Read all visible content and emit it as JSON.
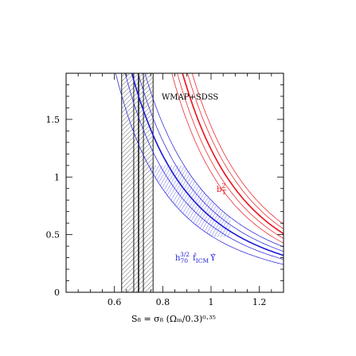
{
  "chart_data": {
    "type": "line",
    "title": "",
    "xlabel": "S₈ = σ₈ (Ωₘ/0.3)⁰·³⁵",
    "ylabel": "",
    "xlim": [
      0.4,
      1.3
    ],
    "ylim": [
      0,
      1.9
    ],
    "x_ticks": [
      0.6,
      0.8,
      1,
      1.2
    ],
    "x_tick_labels": [
      "0.6",
      "0.8",
      "1",
      "1.2"
    ],
    "y_ticks": [
      0,
      0.5,
      1,
      1.5
    ],
    "y_tick_labels": [
      "0",
      "0.5",
      "1",
      "1.5"
    ],
    "grid": false,
    "colors": {
      "red": "#e8121a",
      "blue": "#1a1ad8",
      "black": "#000000"
    },
    "vertical_band": {
      "label": "WMAP+SDSS",
      "center": 0.7,
      "inner": [
        0.68,
        0.72
      ],
      "outer": [
        0.63,
        0.76
      ],
      "hatch": "diagonal"
    },
    "series": [
      {
        "name": "b_T²",
        "color": "red",
        "central": {
          "coef": 1.24,
          "power": 3.4
        },
        "band_inner": [
          {
            "coef": 1.14,
            "power": 3.4
          },
          {
            "coef": 1.34,
            "power": 3.4
          }
        ],
        "band_outer": [
          {
            "coef": 1.04,
            "power": 3.4
          },
          {
            "coef": 1.44,
            "power": 3.4
          }
        ],
        "hatched_region": {
          "x_range": [
            0.74,
            0.96
          ],
          "y_range": [
            0.85,
            1.1
          ]
        }
      },
      {
        "name": "h₇₀^{3/2} f̂_ICM Υ",
        "color": "blue",
        "central": {
          "coef": 0.65,
          "power": 2.7
        },
        "band_inner": [
          {
            "coef": 0.58,
            "power": 2.7
          },
          {
            "coef": 0.72,
            "power": 2.7
          }
        ],
        "band_outer": [
          {
            "coef": 0.49,
            "power": 2.7
          },
          {
            "coef": 0.8,
            "power": 2.7
          }
        ],
        "hatched_region": {
          "x_range": [
            0.52,
            1.08
          ],
          "y_range": [
            0.48,
            1.1
          ]
        }
      }
    ],
    "labels": {
      "red_prefix": "b",
      "red_sup": "2",
      "red_sub": "T",
      "blue_prefix": "h",
      "blue_sub": "70",
      "blue_sup": "3/2",
      "blue_f": "f̂",
      "blue_sub_icm": "ICM",
      "blue_upsilon": "Υ̂"
    }
  }
}
